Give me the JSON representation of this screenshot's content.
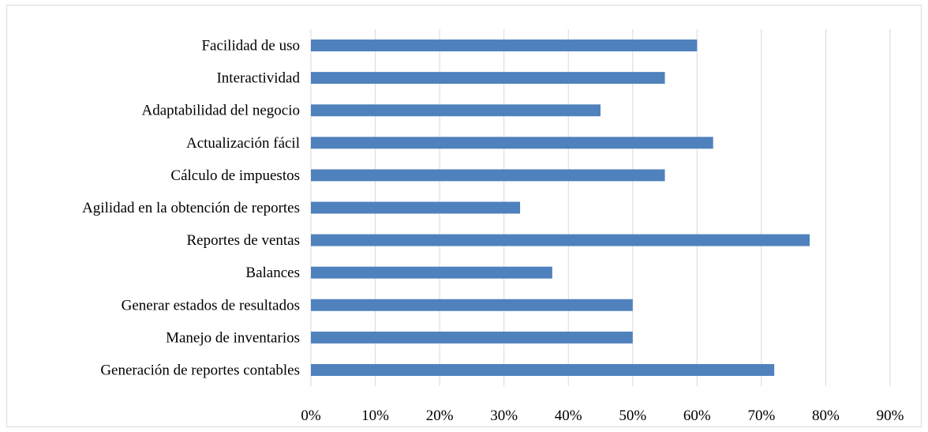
{
  "chart_data": {
    "type": "bar",
    "orientation": "horizontal",
    "categories": [
      "Facilidad de uso",
      "Interactividad",
      "Adaptabilidad del negocio",
      "Actualización fácil",
      "Cálculo de impuestos",
      "Agilidad en la obtención de reportes",
      "Reportes de ventas",
      "Balances",
      "Generar estados de resultados",
      "Manejo de inventarios",
      "Generación de reportes contables"
    ],
    "values": [
      60,
      55,
      45,
      62.5,
      55,
      32.5,
      77.5,
      37.5,
      50,
      50,
      72
    ],
    "xlim": [
      0,
      90
    ],
    "x_ticks": [
      "0%",
      "10%",
      "20%",
      "30%",
      "40%",
      "50%",
      "60%",
      "70%",
      "80%",
      "90%"
    ],
    "title": "",
    "xlabel": "",
    "ylabel": "",
    "grid": "vertical",
    "legend": "none",
    "bar_color": "#4f81bd",
    "grid_color": "#d9d9d9"
  }
}
